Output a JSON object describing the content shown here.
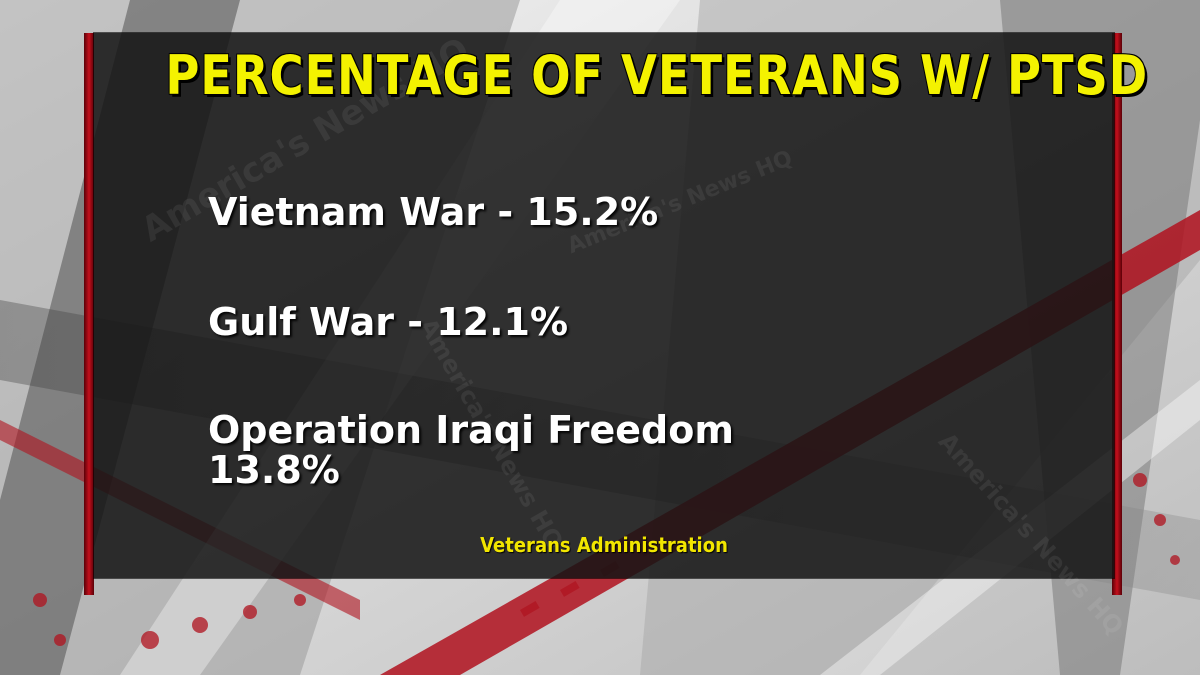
{
  "title": "PERCENTAGE OF VETERANS W/ PTSD",
  "items": [
    {
      "label": "Vietnam War - 15.2%"
    },
    {
      "label": "Gulf War - 12.1%"
    },
    {
      "label_line1": "Operation Iraqi Freedom",
      "label_line2": "13.8%"
    }
  ],
  "source": "Veterans Administration",
  "watermarks": [
    "America's News HQ",
    "America's News HQ",
    "America's News HQ",
    "America's News HQ"
  ],
  "colors": {
    "title": "#f4f200",
    "source": "#f2e600",
    "accent": "#c4101c"
  }
}
